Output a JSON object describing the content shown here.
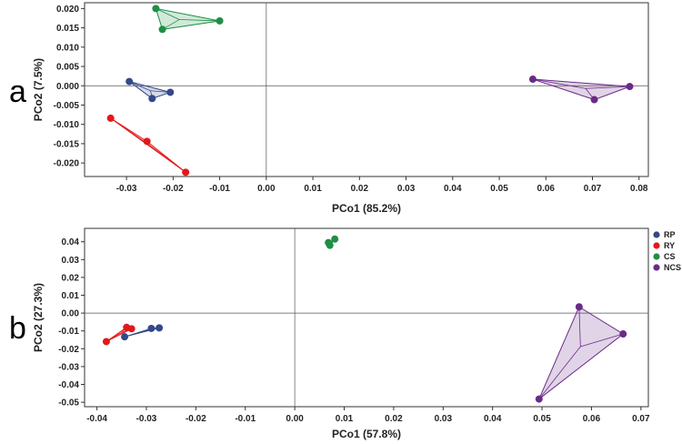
{
  "groups": [
    {
      "name": "RP",
      "color": "#34488a"
    },
    {
      "name": "RY",
      "color": "#e0191b"
    },
    {
      "name": "CS",
      "color": "#1f8f46"
    },
    {
      "name": "NCS",
      "color": "#6a2a88"
    }
  ],
  "chart_data": [
    {
      "type": "scatter",
      "panel": "a",
      "xlabel": "PCo1 (85.2%)",
      "ylabel": "PCo2 (7.5%)",
      "xlim": [
        -0.039,
        0.082
      ],
      "ylim": [
        -0.0235,
        0.0215
      ],
      "xticks": [
        -0.03,
        -0.02,
        -0.01,
        0.0,
        0.01,
        0.02,
        0.03,
        0.04,
        0.05,
        0.06,
        0.07,
        0.08
      ],
      "xtick_labels": [
        "-0.03",
        "-0.02",
        "-0.01",
        "0.00",
        "0.01",
        "0.02",
        "0.03",
        "0.04",
        "0.05",
        "0.06",
        "0.07",
        "0.08"
      ],
      "yticks": [
        0.02,
        0.015,
        0.01,
        0.005,
        0.0,
        -0.005,
        -0.01,
        -0.015,
        -0.02
      ],
      "ytick_labels": [
        "0.020",
        "0.015",
        "0.010",
        "0.005",
        "0.000",
        "-0.005",
        "-0.010",
        "-0.015",
        "-0.020"
      ],
      "series": [
        {
          "name": "RP",
          "x": [
            -0.0294,
            -0.0245,
            -0.0206
          ],
          "y": [
            0.0011,
            -0.0033,
            -0.0017
          ]
        },
        {
          "name": "RY",
          "x": [
            -0.0334,
            -0.0256,
            -0.0173
          ],
          "y": [
            -0.0084,
            -0.0144,
            -0.0224
          ]
        },
        {
          "name": "CS",
          "x": [
            -0.0237,
            -0.01,
            -0.0223
          ],
          "y": [
            0.02,
            0.0168,
            0.0146
          ]
        },
        {
          "name": "NCS",
          "x": [
            0.0572,
            0.078,
            0.0704
          ],
          "y": [
            0.0017,
            -0.0002,
            -0.0036
          ]
        }
      ]
    },
    {
      "type": "scatter",
      "panel": "b",
      "xlabel": "PCo1 (57.8%)",
      "ylabel": "PCo2 (27.3%)",
      "xlim": [
        -0.0425,
        0.0715
      ],
      "ylim": [
        -0.0525,
        0.0475
      ],
      "xticks": [
        -0.04,
        -0.03,
        -0.02,
        -0.01,
        0.0,
        0.01,
        0.02,
        0.03,
        0.04,
        0.05,
        0.06,
        0.07
      ],
      "xtick_labels": [
        "-0.04",
        "-0.03",
        "-0.02",
        "-0.01",
        "0.00",
        "0.01",
        "0.02",
        "0.03",
        "0.04",
        "0.05",
        "0.06",
        "0.07"
      ],
      "yticks": [
        0.04,
        0.03,
        0.02,
        0.01,
        0.0,
        -0.01,
        -0.02,
        -0.03,
        -0.04,
        -0.05
      ],
      "ytick_labels": [
        "0.04",
        "0.03",
        "0.02",
        "0.01",
        "0.00",
        "-0.01",
        "-0.02",
        "-0.03",
        "-0.04",
        "-0.05"
      ],
      "series": [
        {
          "name": "RP",
          "x": [
            -0.0344,
            -0.029,
            -0.0274
          ],
          "y": [
            -0.0133,
            -0.0086,
            -0.0083
          ]
        },
        {
          "name": "RY",
          "x": [
            -0.0381,
            -0.034,
            -0.033
          ],
          "y": [
            -0.016,
            -0.008,
            -0.0088
          ]
        },
        {
          "name": "CS",
          "x": [
            0.0068,
            0.0071,
            0.0081
          ],
          "y": [
            0.0395,
            0.038,
            0.0415
          ]
        },
        {
          "name": "NCS",
          "x": [
            0.0575,
            0.0664,
            0.0494
          ],
          "y": [
            0.0035,
            -0.0117,
            -0.0482
          ]
        }
      ],
      "legend": {
        "placement": "top-right",
        "entries": [
          "RP",
          "RY",
          "CS",
          "NCS"
        ]
      }
    }
  ]
}
